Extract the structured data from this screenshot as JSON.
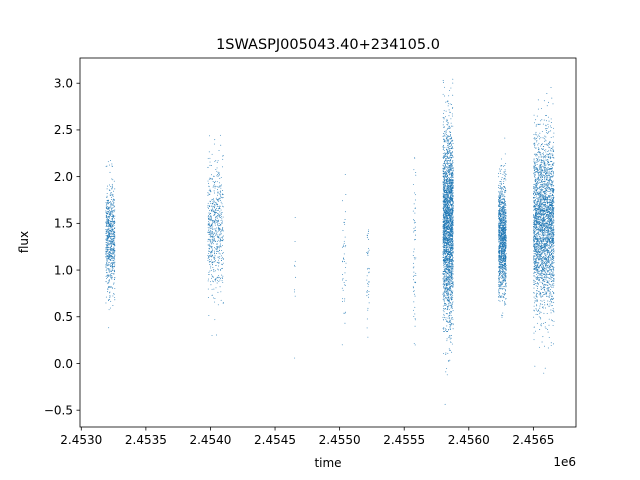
{
  "chart_data": {
    "type": "scatter",
    "title": "1SWASPJ005043.40+234105.0",
    "xlabel": "time",
    "ylabel": "flux",
    "x_offset_label": "1e6",
    "x_tick_labels": [
      "2.4530",
      "2.4535",
      "2.4540",
      "2.4545",
      "2.4550",
      "2.4555",
      "2.4560",
      "2.4565"
    ],
    "y_tick_labels": [
      "−0.5",
      "0.0",
      "0.5",
      "1.0",
      "1.5",
      "2.0",
      "2.5",
      "3.0"
    ],
    "xlim": [
      2452990,
      2456830
    ],
    "ylim": [
      -0.68,
      3.27
    ],
    "grid": false,
    "marker_color": "#1f77b4",
    "series": [
      {
        "segments": [
          {
            "x_start": 2453190,
            "x_end": 2453260,
            "y_mean": 1.35,
            "y_spread": 0.3,
            "count": 700
          },
          {
            "x_start": 2453980,
            "x_end": 2454100,
            "y_mean": 1.45,
            "y_spread": 0.35,
            "count": 600
          },
          {
            "x_start": 2454650,
            "x_end": 2454660,
            "y_mean": 1.0,
            "y_spread": 0.35,
            "count": 10
          },
          {
            "x_start": 2455020,
            "x_end": 2455050,
            "y_mean": 1.0,
            "y_spread": 0.35,
            "count": 45
          },
          {
            "x_start": 2455210,
            "x_end": 2455230,
            "y_mean": 1.0,
            "y_spread": 0.35,
            "count": 40
          },
          {
            "x_start": 2455570,
            "x_end": 2455590,
            "y_mean": 1.2,
            "y_spread": 0.45,
            "count": 60
          },
          {
            "x_start": 2455800,
            "x_end": 2455880,
            "y_mean": 1.5,
            "y_spread": 0.5,
            "count": 2600
          },
          {
            "x_start": 2456230,
            "x_end": 2456290,
            "y_mean": 1.35,
            "y_spread": 0.3,
            "count": 1300
          },
          {
            "x_start": 2456500,
            "x_end": 2456660,
            "y_mean": 1.5,
            "y_spread": 0.45,
            "count": 2800
          }
        ]
      }
    ]
  }
}
